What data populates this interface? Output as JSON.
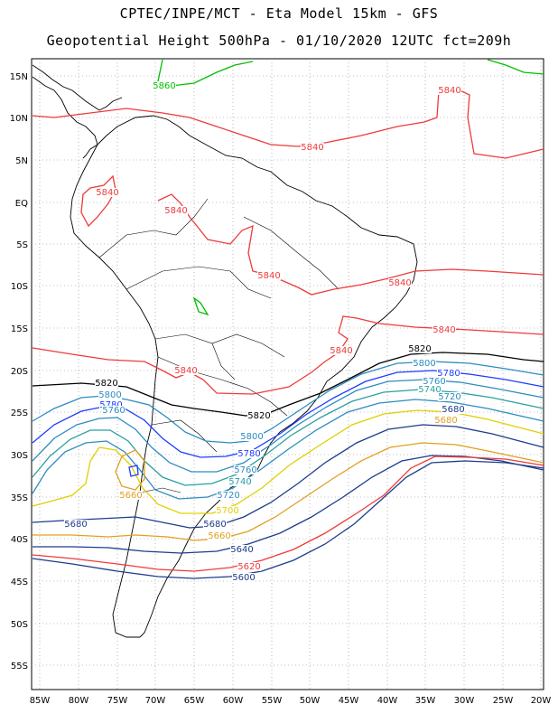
{
  "title_line1": "CPTEC/INPE/MCT - Eta Model 15km - GFS",
  "title_line2": "Geopotential Height 500hPa - 01/10/2020 12UTC fct=209h",
  "lat_ticks": [
    "15N",
    "10N",
    "5N",
    "EQ",
    "5S",
    "10S",
    "15S",
    "20S",
    "25S",
    "30S",
    "35S",
    "40S",
    "45S",
    "50S",
    "55S"
  ],
  "lon_ticks": [
    "85W",
    "80W",
    "75W",
    "70W",
    "65W",
    "60W",
    "55W",
    "50W",
    "45W",
    "40W",
    "35W",
    "30W",
    "25W",
    "20W"
  ],
  "contour_labels": [
    {
      "text": "5860",
      "color": "#00c000"
    },
    {
      "text": "5840",
      "color": "#ee3b3b"
    },
    {
      "text": "5840",
      "color": "#ee3b3b"
    },
    {
      "text": "5840",
      "color": "#ee3b3b"
    },
    {
      "text": "5840",
      "color": "#ee3b3b"
    },
    {
      "text": "5840",
      "color": "#ee3b3b"
    },
    {
      "text": "5840",
      "color": "#ee3b3b"
    },
    {
      "text": "5840",
      "color": "#ee3b3b"
    },
    {
      "text": "5840",
      "color": "#ee3b3b"
    },
    {
      "text": "5840",
      "color": "#ee3b3b"
    },
    {
      "text": "5820",
      "color": "#000000"
    },
    {
      "text": "5820",
      "color": "#000000"
    },
    {
      "text": "5820",
      "color": "#000000"
    },
    {
      "text": "5800",
      "color": "#2c8cc0"
    },
    {
      "text": "5800",
      "color": "#2c8cc0"
    },
    {
      "text": "5800",
      "color": "#2c8cc0"
    },
    {
      "text": "5780",
      "color": "#1e3cff"
    },
    {
      "text": "5780",
      "color": "#1e3cff"
    },
    {
      "text": "5780",
      "color": "#1e3cff"
    },
    {
      "text": "5760",
      "color": "#2c8cc0"
    },
    {
      "text": "5760",
      "color": "#2c8cc0"
    },
    {
      "text": "5760",
      "color": "#2c8cc0"
    },
    {
      "text": "5740",
      "color": "#2aa0a0"
    },
    {
      "text": "5740",
      "color": "#2aa0a0"
    },
    {
      "text": "5720",
      "color": "#2c8cc0"
    },
    {
      "text": "5720",
      "color": "#2c8cc0"
    },
    {
      "text": "5700",
      "color": "#e0d000"
    },
    {
      "text": "5680",
      "color": "#1e3c8c"
    },
    {
      "text": "5680",
      "color": "#1e3c8c"
    },
    {
      "text": "5680",
      "color": "#1e3c8c"
    },
    {
      "text": "5680",
      "color": "#e0a020"
    },
    {
      "text": "5660",
      "color": "#e0a020"
    },
    {
      "text": "5660",
      "color": "#e0a020"
    },
    {
      "text": "5640",
      "color": "#1e3c8c"
    },
    {
      "text": "5620",
      "color": "#ee3b3b"
    },
    {
      "text": "5600",
      "color": "#1e3c8c"
    }
  ]
}
